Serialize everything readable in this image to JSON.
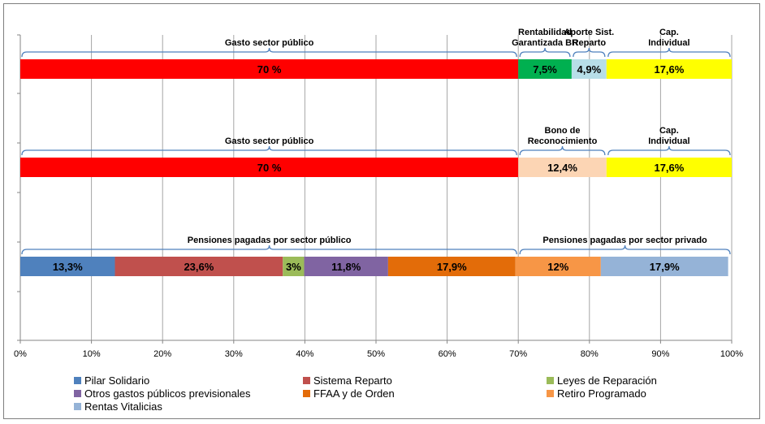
{
  "chart_data": {
    "type": "bar",
    "orientation": "horizontal-stacked-100",
    "xlim": [
      0,
      100
    ],
    "ticks": [
      "0%",
      "10%",
      "20%",
      "30%",
      "40%",
      "50%",
      "60%",
      "70%",
      "80%",
      "90%",
      "100%"
    ],
    "grid": true,
    "legend_position": "bottom",
    "bars": [
      {
        "segments": [
          {
            "value": 70,
            "label": "70 %",
            "color": "#ff0000"
          },
          {
            "value": 7.5,
            "label": "7,5%",
            "color": "#00b050"
          },
          {
            "value": 4.9,
            "label": "4,9%",
            "color": "#b7dee8"
          },
          {
            "value": 17.6,
            "label": "17,6%",
            "color": "#ffff00"
          }
        ],
        "braces": [
          {
            "from": 0,
            "to": 70,
            "lines": [
              "Gasto sector público"
            ]
          },
          {
            "from": 70,
            "to": 77.5,
            "lines": [
              "Rentabilidad",
              "Garantizada BR"
            ]
          },
          {
            "from": 77.5,
            "to": 82.4,
            "lines": [
              "Aporte Sist.",
              "Reparto"
            ]
          },
          {
            "from": 82.4,
            "to": 100,
            "lines": [
              "Cap.",
              "Individual"
            ]
          }
        ]
      },
      {
        "segments": [
          {
            "value": 70,
            "label": "70 %",
            "color": "#ff0000"
          },
          {
            "value": 12.4,
            "label": "12,4%",
            "color": "#fcd5b4"
          },
          {
            "value": 17.6,
            "label": "17,6%",
            "color": "#ffff00"
          }
        ],
        "braces": [
          {
            "from": 0,
            "to": 70,
            "lines": [
              "Gasto sector público"
            ]
          },
          {
            "from": 70,
            "to": 82.4,
            "lines": [
              "Bono de",
              "Reconocimiento"
            ]
          },
          {
            "from": 82.4,
            "to": 100,
            "lines": [
              "Cap.",
              "Individual"
            ]
          }
        ]
      },
      {
        "segments": [
          {
            "value": 13.3,
            "label": "13,3%",
            "color": "#4f81bd"
          },
          {
            "value": 23.6,
            "label": "23,6%",
            "color": "#c0504d"
          },
          {
            "value": 3,
            "label": "3%",
            "color": "#9bbb59"
          },
          {
            "value": 11.8,
            "label": "11,8%",
            "color": "#8064a2"
          },
          {
            "value": 17.9,
            "label": "17,9%",
            "color": "#e36c09"
          },
          {
            "value": 12,
            "label": "12%",
            "color": "#f79646"
          },
          {
            "value": 17.9,
            "label": "17,9%",
            "color": "#95b3d7"
          }
        ],
        "braces": [
          {
            "from": 0,
            "to": 70,
            "lines": [
              "Pensiones pagadas por sector público"
            ]
          },
          {
            "from": 70,
            "to": 100,
            "lines": [
              "Pensiones pagadas por sector privado"
            ]
          }
        ]
      }
    ],
    "legend": [
      {
        "name": "Pilar Solidario",
        "color": "#4f81bd"
      },
      {
        "name": "Sistema Reparto",
        "color": "#c0504d"
      },
      {
        "name": "Leyes de Reparación",
        "color": "#9bbb59"
      },
      {
        "name": "Otros gastos públicos previsionales",
        "color": "#8064a2"
      },
      {
        "name": "FFAA y de Orden",
        "color": "#e36c09"
      },
      {
        "name": "Retiro Programado",
        "color": "#f79646"
      },
      {
        "name": "Rentas Vitalicias",
        "color": "#95b3d7"
      }
    ]
  }
}
